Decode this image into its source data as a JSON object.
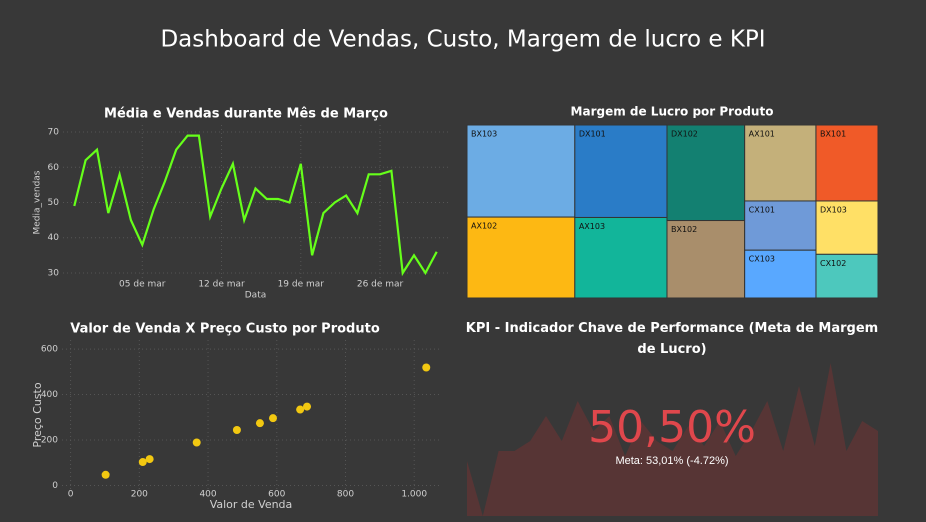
{
  "title": "Dashboard de Vendas, Custo, Margem de lucro e KPI",
  "chart_data": [
    {
      "type": "line",
      "title": "Média e Vendas durante Mês de Março",
      "x_label": "Data",
      "y_label": "Media_vendas",
      "color": "#66ff1a",
      "grid": true,
      "x": [
        1,
        2,
        3,
        4,
        5,
        6,
        7,
        8,
        9,
        10,
        11,
        12,
        13,
        14,
        15,
        16,
        17,
        18,
        19,
        20,
        21,
        22,
        23,
        24,
        25,
        26,
        27,
        28,
        29,
        30,
        31,
        32,
        33
      ],
      "values": [
        49,
        62,
        65,
        47,
        58,
        45,
        38,
        48,
        56,
        65,
        69,
        69,
        46,
        54,
        61,
        45,
        54,
        51,
        51,
        50,
        61,
        35,
        47,
        50,
        52,
        47,
        58,
        58,
        59,
        30,
        35,
        30,
        36
      ],
      "xlim": [
        0,
        34
      ],
      "xticks": [
        {
          "value": 7,
          "label": "05 de mar"
        },
        {
          "value": 14,
          "label": "12 de mar"
        },
        {
          "value": 21,
          "label": "19 de mar"
        },
        {
          "value": 28,
          "label": "26 de mar"
        }
      ],
      "ylim": [
        28,
        72
      ],
      "yticks": [
        30,
        40,
        50,
        60,
        70
      ]
    },
    {
      "type": "treemap",
      "title": "Margem de Lucro por Produto",
      "categories": [
        "BX103",
        "AX102",
        "DX101",
        "AX103",
        "DX102",
        "BX102",
        "AX101",
        "BX101",
        "CX101",
        "CX103",
        "DX103",
        "CX102"
      ],
      "values": [
        99,
        87,
        85,
        74,
        74,
        60,
        54,
        47,
        35,
        34,
        33,
        27
      ],
      "colors": [
        "#6cace4",
        "#fdb813",
        "#2a7cc7",
        "#12b59a",
        "#138071",
        "#a98e6b",
        "#c4b07a",
        "#f05a28",
        "#6f9ad8",
        "#59a8ff",
        "#ffe066",
        "#4dc8bd"
      ]
    },
    {
      "type": "scatter",
      "title": "Valor de Venda X Preço Custo por Produto",
      "x_label": "Valor de Venda",
      "y_label": "Preço Custo",
      "color": "#f2c811",
      "grid": true,
      "x": [
        102,
        210,
        230,
        367,
        484,
        551,
        589,
        668,
        688,
        1035
      ],
      "values": [
        47,
        103,
        116,
        189,
        244,
        274,
        296,
        334,
        347,
        519
      ],
      "xlim": [
        -25,
        1075
      ],
      "xticks": [
        0,
        200,
        400,
        600,
        800,
        {
          "value": 1000,
          "label": "1.000"
        }
      ],
      "ylim": [
        -20,
        640
      ],
      "yticks": [
        0,
        200,
        400,
        600
      ]
    },
    {
      "type": "kpi",
      "title": "KPI - Indicador Chave de Performance (Meta de Margem de Lucro)",
      "value": 50.5,
      "value_label": "50,50%",
      "goal_label": "Meta: 53,01% (-4.72%)",
      "color": "#e0474c",
      "trend_color": "#573535",
      "trend": [
        55,
        0,
        65,
        65,
        75,
        100,
        75,
        115,
        85,
        100,
        60,
        95,
        75,
        65,
        90,
        70,
        95,
        60,
        85,
        115,
        65,
        130,
        70,
        153,
        65,
        95,
        85
      ],
      "trend_ylim": [
        0,
        160
      ]
    }
  ]
}
